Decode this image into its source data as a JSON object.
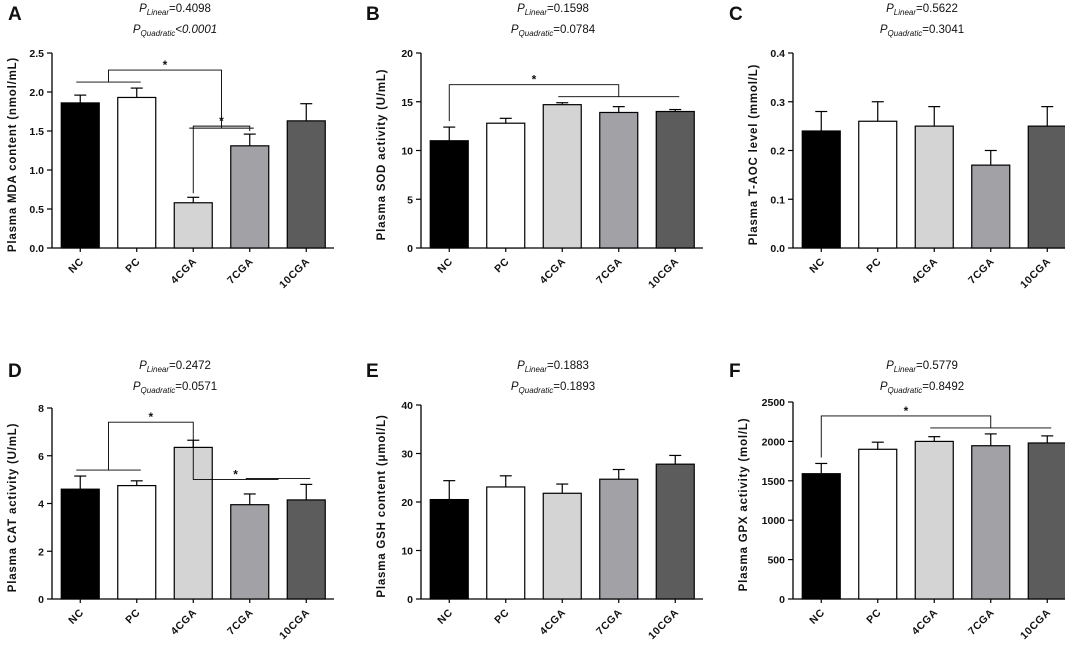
{
  "figure": {
    "groups": [
      "NC",
      "PC",
      "4CGA",
      "7CGA",
      "10CGA"
    ],
    "bar_colors": [
      "#000000",
      "#ffffff",
      "#d4d4d4",
      "#a1a1a6",
      "#5c5c5c"
    ]
  },
  "chart_data": [
    {
      "type": "bar",
      "panel_letter": "A",
      "categories": [
        "NC",
        "PC",
        "4CGA",
        "7CGA",
        "10CGA"
      ],
      "values": [
        1.86,
        1.93,
        0.58,
        1.31,
        1.63
      ],
      "errors": [
        0.1,
        0.12,
        0.07,
        0.15,
        0.22
      ],
      "ylabel": "Plasma MDA content (nmol/mL)",
      "ylim": [
        0,
        2.5
      ],
      "ticks": [
        "0.0",
        "0.5",
        "1.0",
        "1.5",
        "2.0",
        "2.5"
      ],
      "p_linear": {
        "label": "P",
        "sub": "Linear",
        "text": "=0.4098"
      },
      "p_quadratic": {
        "label": "P",
        "sub": "Quadratic",
        "text": "<0.0001"
      },
      "significance": [
        {
          "from": [
            0,
            1
          ],
          "to": [
            2,
            3
          ],
          "label": "*"
        },
        {
          "from": [
            2
          ],
          "to": [
            3
          ],
          "label": "*"
        }
      ]
    },
    {
      "type": "bar",
      "panel_letter": "B",
      "categories": [
        "NC",
        "PC",
        "4CGA",
        "7CGA",
        "10CGA"
      ],
      "values": [
        11.0,
        12.8,
        14.7,
        13.9,
        14.0
      ],
      "errors": [
        1.4,
        0.5,
        0.2,
        0.6,
        0.2
      ],
      "ylabel": "Plasma SOD activity (U/mL)",
      "ylim": [
        0,
        20
      ],
      "ticks": [
        "0",
        "5",
        "10",
        "15",
        "20"
      ],
      "p_linear": {
        "label": "P",
        "sub": "Linear",
        "text": "=0.1598"
      },
      "p_quadratic": {
        "label": "P",
        "sub": "Quadratic",
        "text": "=0.0784"
      },
      "significance": [
        {
          "from": [
            0
          ],
          "to": [
            2,
            3,
            4
          ],
          "label": "*"
        }
      ]
    },
    {
      "type": "bar",
      "panel_letter": "C",
      "categories": [
        "NC",
        "PC",
        "4CGA",
        "7CGA",
        "10CGA"
      ],
      "values": [
        0.24,
        0.26,
        0.25,
        0.17,
        0.25
      ],
      "errors": [
        0.04,
        0.04,
        0.04,
        0.03,
        0.04
      ],
      "ylabel": "Plasma T-AOC level (mmol/L)",
      "ylim": [
        0,
        0.4
      ],
      "ticks": [
        "0.0",
        "0.1",
        "0.2",
        "0.3",
        "0.4"
      ],
      "p_linear": {
        "label": "P",
        "sub": "Linear",
        "text": "=0.5622"
      },
      "p_quadratic": {
        "label": "P",
        "sub": "Quadratic",
        "text": "=0.3041"
      },
      "significance": []
    },
    {
      "type": "bar",
      "panel_letter": "D",
      "categories": [
        "NC",
        "PC",
        "4CGA",
        "7CGA",
        "10CGA"
      ],
      "values": [
        4.6,
        4.75,
        6.35,
        3.95,
        4.15
      ],
      "errors": [
        0.55,
        0.2,
        0.3,
        0.45,
        0.65
      ],
      "ylabel": "Plasma CAT activity (U/mL)",
      "ylim": [
        0,
        8
      ],
      "ticks": [
        "0",
        "2",
        "4",
        "6",
        "8"
      ],
      "p_linear": {
        "label": "P",
        "sub": "Linear",
        "text": "=0.2472"
      },
      "p_quadratic": {
        "label": "P",
        "sub": "Quadratic",
        "text": "=0.0571"
      },
      "significance": [
        {
          "from": [
            0,
            1
          ],
          "to": [
            2
          ],
          "label": "*"
        },
        {
          "from": [
            2
          ],
          "to": [
            3,
            4
          ],
          "label": "*"
        }
      ]
    },
    {
      "type": "bar",
      "panel_letter": "E",
      "categories": [
        "NC",
        "PC",
        "4CGA",
        "7CGA",
        "10CGA"
      ],
      "values": [
        20.5,
        23.1,
        21.8,
        24.7,
        27.8
      ],
      "errors": [
        3.9,
        2.3,
        1.9,
        2.0,
        1.8
      ],
      "ylabel": "Plasma GSH content (μmol/L)",
      "ylim": [
        0,
        40
      ],
      "ticks": [
        "0",
        "10",
        "20",
        "30",
        "40"
      ],
      "p_linear": {
        "label": "P",
        "sub": "Linear",
        "text": "=0.1883"
      },
      "p_quadratic": {
        "label": "P",
        "sub": "Quadratic",
        "text": "=0.1893"
      },
      "significance": []
    },
    {
      "type": "bar",
      "panel_letter": "F",
      "categories": [
        "NC",
        "PC",
        "4CGA",
        "7CGA",
        "10CGA"
      ],
      "values": [
        1590,
        1900,
        2000,
        1945,
        1980
      ],
      "errors": [
        130,
        90,
        60,
        150,
        90
      ],
      "ylabel": "Plasma GPX activity (mol/L)",
      "ylim": [
        0,
        2500
      ],
      "ticks": [
        "0",
        "500",
        "1000",
        "1500",
        "2000",
        "2500"
      ],
      "p_linear": {
        "label": "P",
        "sub": "Linear",
        "text": "=0.5779"
      },
      "p_quadratic": {
        "label": "P",
        "sub": "Quadratic",
        "text": "=0.8492"
      },
      "significance": [
        {
          "from": [
            0
          ],
          "to": [
            2,
            3,
            4
          ],
          "label": "*"
        }
      ]
    }
  ]
}
